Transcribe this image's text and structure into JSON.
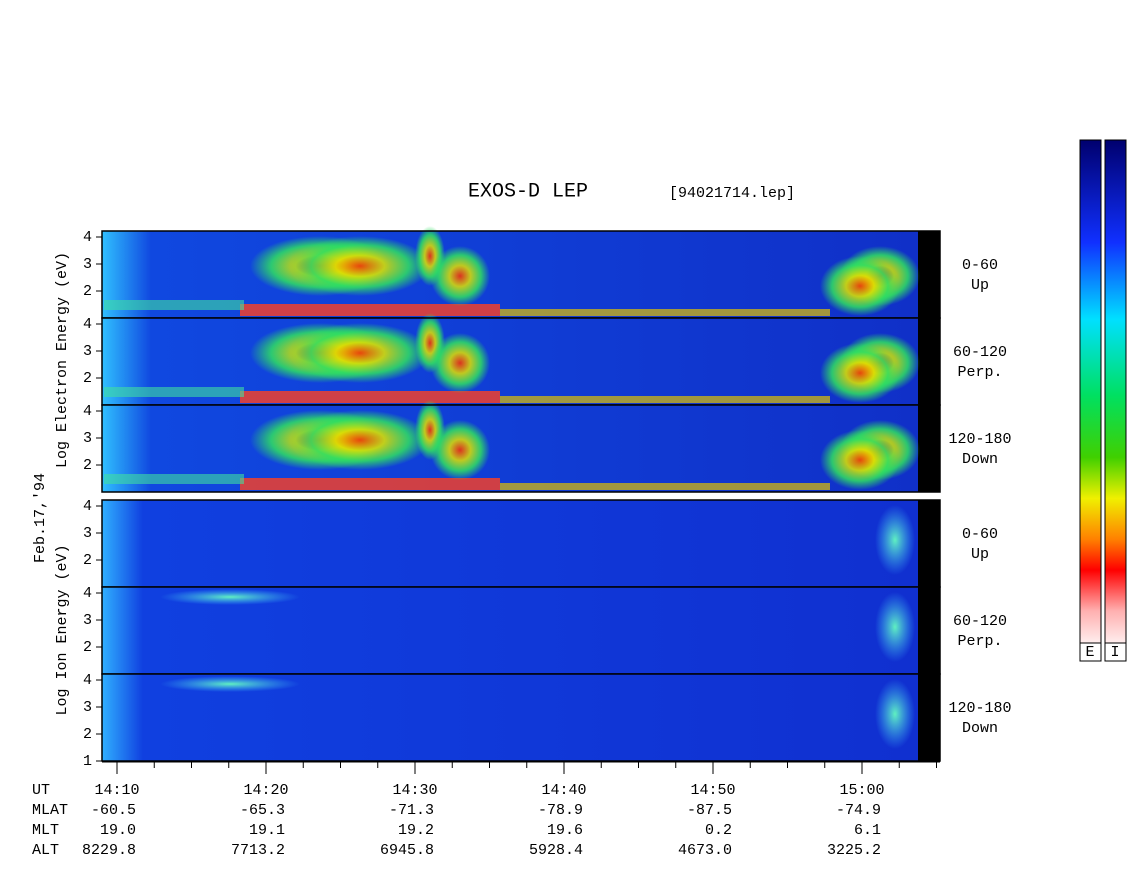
{
  "header": {
    "title": "EXOS-D LEP",
    "file": "[94021714.lep]"
  },
  "electron": {
    "label": "Log  Electron  Energy (eV)",
    "panels": [
      {
        "angle": "0-60",
        "dir": "Up",
        "yticks": [
          "4",
          "3",
          "2"
        ]
      },
      {
        "angle": "60-120",
        "dir": "Perp.",
        "yticks": [
          "4",
          "3",
          "2"
        ]
      },
      {
        "angle": "120-180",
        "dir": "Down",
        "yticks": [
          "4",
          "3",
          "2"
        ]
      }
    ]
  },
  "date": "Feb.17,'94",
  "ion": {
    "label": "Log  Ion  Energy (eV)",
    "panels": [
      {
        "angle": "0-60",
        "dir": "Up",
        "yticks": [
          "4",
          "3",
          "2"
        ]
      },
      {
        "angle": "60-120",
        "dir": "Perp.",
        "yticks": [
          "4",
          "3",
          "2"
        ]
      },
      {
        "angle": "120-180",
        "dir": "Down",
        "yticks": [
          "4",
          "3",
          "2",
          "1"
        ]
      }
    ]
  },
  "orbit": {
    "rows": [
      {
        "name": "UT",
        "values": [
          "14:10",
          "14:20",
          "14:30",
          "14:40",
          "14:50",
          "15:00"
        ]
      },
      {
        "name": "MLAT",
        "values": [
          "-60.5",
          "-65.3",
          "-71.3",
          "-78.9",
          "-87.5",
          "-74.9"
        ]
      },
      {
        "name": "MLT",
        "values": [
          "19.0",
          "19.1",
          "19.2",
          "19.6",
          "0.2",
          "6.1"
        ]
      },
      {
        "name": "ALT",
        "values": [
          "8229.8",
          "7713.2",
          "6945.8",
          "5928.4",
          "4673.0",
          "3225.2"
        ]
      }
    ]
  },
  "colorbar": {
    "labels": [
      "E",
      "I"
    ]
  }
}
